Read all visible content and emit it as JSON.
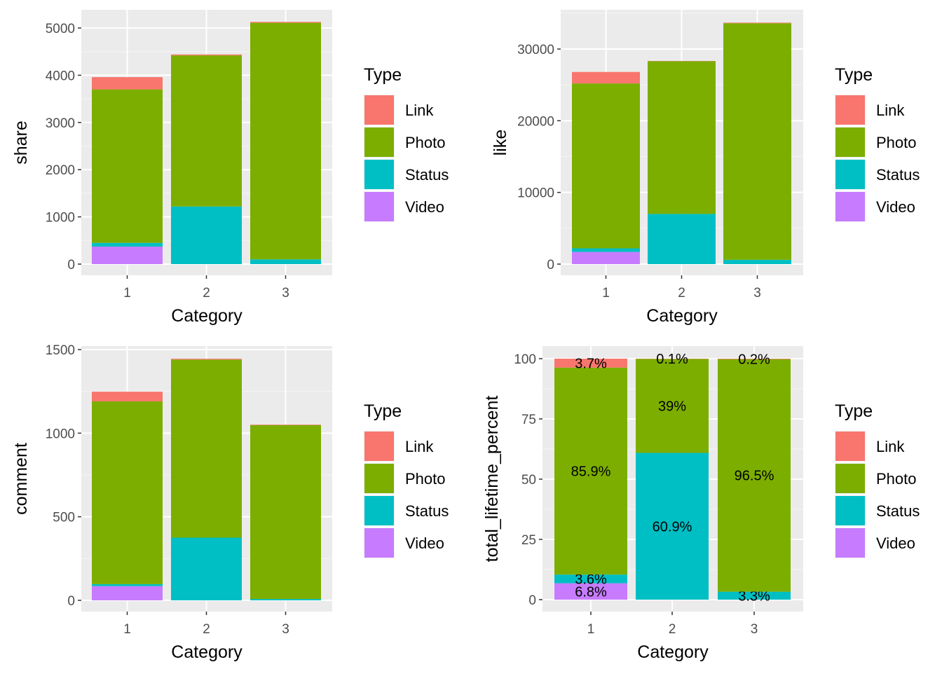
{
  "legend": {
    "title": "Type",
    "entries": [
      {
        "name": "Link",
        "color": "#F8766D"
      },
      {
        "name": "Photo",
        "color": "#7CAE00"
      },
      {
        "name": "Status",
        "color": "#00BFC4"
      },
      {
        "name": "Video",
        "color": "#C77CFF"
      }
    ]
  },
  "chart_data": [
    {
      "type": "bar",
      "stacked": true,
      "xlabel": "Category",
      "ylabel": "share",
      "categories": [
        "1",
        "2",
        "3"
      ],
      "ylim": [
        0,
        5100
      ],
      "yticks": [
        0,
        1000,
        2000,
        3000,
        4000,
        5000
      ],
      "grid": true,
      "legend_position": "right",
      "series": [
        {
          "name": "Video",
          "values": [
            370,
            0,
            0
          ]
        },
        {
          "name": "Status",
          "values": [
            80,
            1220,
            100
          ]
        },
        {
          "name": "Photo",
          "values": [
            3250,
            3200,
            5010
          ]
        },
        {
          "name": "Link",
          "values": [
            260,
            20,
            20
          ]
        }
      ]
    },
    {
      "type": "bar",
      "stacked": true,
      "xlabel": "Category",
      "ylabel": "like",
      "categories": [
        "1",
        "2",
        "3"
      ],
      "ylim": [
        0,
        33700
      ],
      "yticks": [
        0,
        10000,
        20000,
        30000
      ],
      "grid": true,
      "legend_position": "right",
      "series": [
        {
          "name": "Video",
          "values": [
            1700,
            0,
            0
          ]
        },
        {
          "name": "Status",
          "values": [
            500,
            7000,
            600
          ]
        },
        {
          "name": "Photo",
          "values": [
            23000,
            21300,
            33000
          ]
        },
        {
          "name": "Link",
          "values": [
            1600,
            40,
            80
          ]
        }
      ]
    },
    {
      "type": "bar",
      "stacked": true,
      "xlabel": "Category",
      "ylabel": "comment",
      "categories": [
        "1",
        "2",
        "3"
      ],
      "ylim": [
        0,
        1500
      ],
      "yticks": [
        0,
        500,
        1000,
        1500
      ],
      "grid": true,
      "legend_position": "right",
      "series": [
        {
          "name": "Video",
          "values": [
            85,
            0,
            0
          ]
        },
        {
          "name": "Status",
          "values": [
            12,
            375,
            8
          ]
        },
        {
          "name": "Photo",
          "values": [
            1093,
            1065,
            1040
          ]
        },
        {
          "name": "Link",
          "values": [
            58,
            5,
            3
          ]
        }
      ]
    },
    {
      "type": "bar",
      "stacked": true,
      "xlabel": "Category",
      "ylabel": "total_lifetime_percent",
      "categories": [
        "1",
        "2",
        "3"
      ],
      "ylim": [
        0,
        100
      ],
      "yticks": [
        0,
        25,
        50,
        75,
        100
      ],
      "grid": true,
      "legend_position": "right",
      "series": [
        {
          "name": "Video",
          "values": [
            6.8,
            0,
            0
          ],
          "labels": [
            "6.8%",
            "",
            ""
          ]
        },
        {
          "name": "Status",
          "values": [
            3.6,
            60.9,
            3.3
          ],
          "labels": [
            "3.6%",
            "60.9%",
            "3.3%"
          ]
        },
        {
          "name": "Photo",
          "values": [
            85.9,
            39,
            96.5
          ],
          "labels": [
            "85.9%",
            "39%",
            "96.5%"
          ]
        },
        {
          "name": "Link",
          "values": [
            3.7,
            0.1,
            0.2
          ],
          "labels": [
            "3.7%",
            "0.1%",
            "0.2%"
          ]
        }
      ]
    }
  ]
}
